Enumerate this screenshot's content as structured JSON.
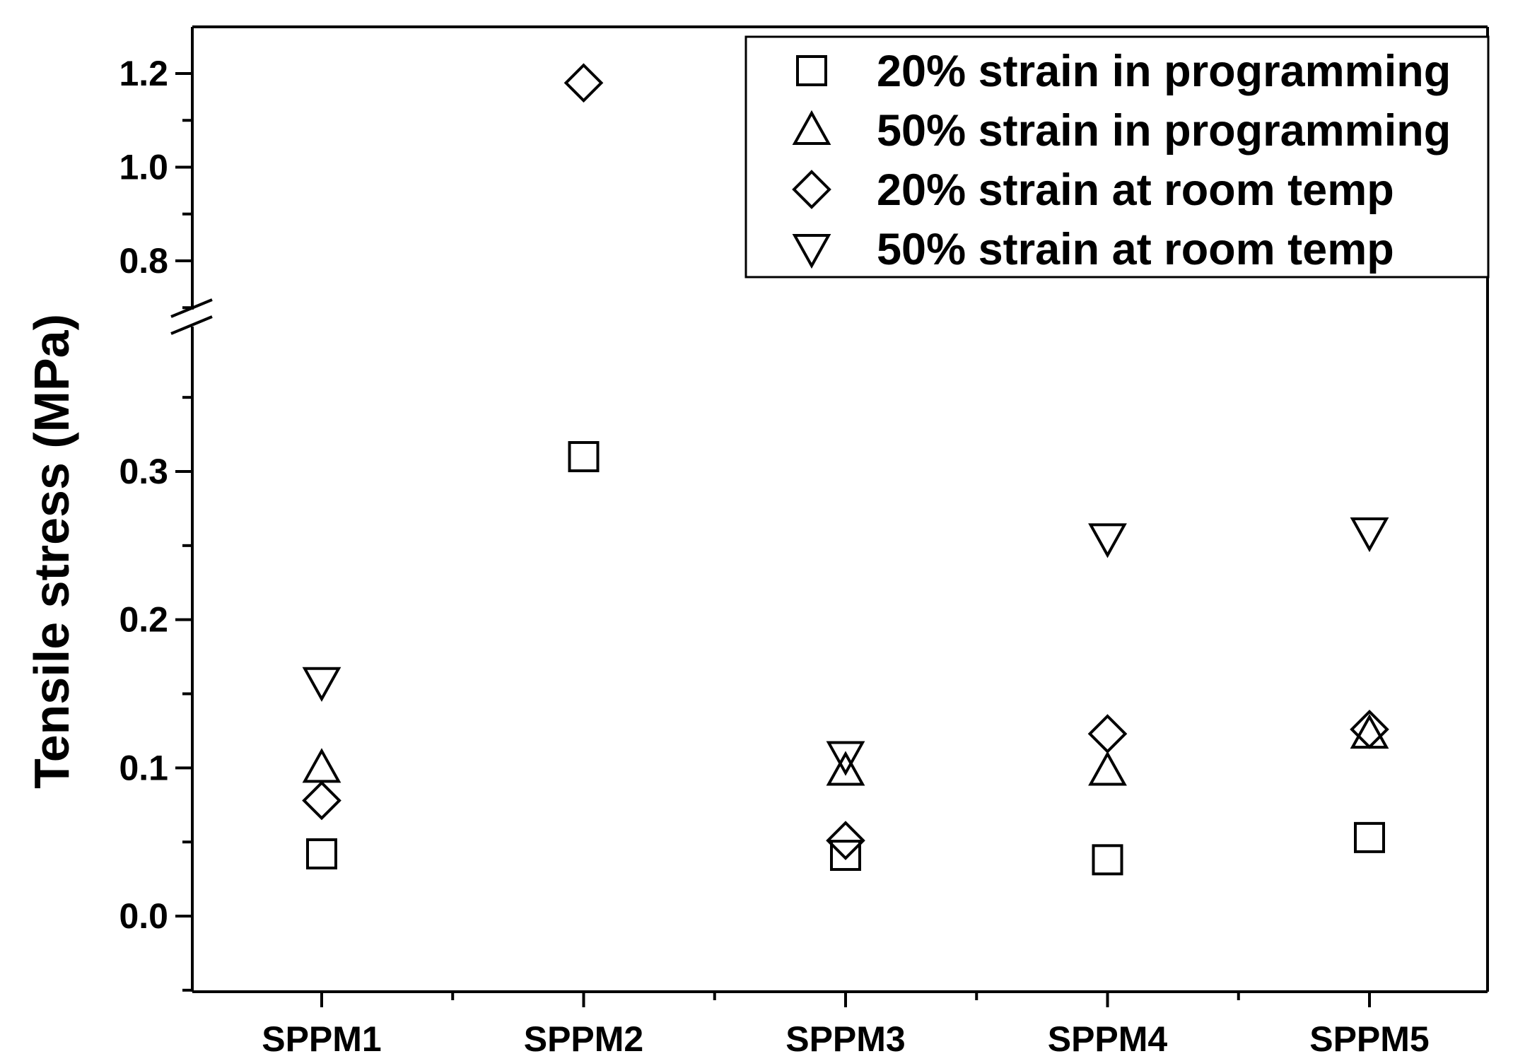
{
  "chart_data": {
    "type": "scatter",
    "ylabel": "Tensile stress (MPa)",
    "xlabel": "",
    "categories": [
      "SPPM1",
      "SPPM2",
      "SPPM3",
      "SPPM4",
      "SPPM5"
    ],
    "axis_break": {
      "lower_range": [
        -0.05,
        0.4
      ],
      "upper_range": [
        0.7,
        1.3
      ]
    },
    "yticks_lower": [
      "0.0",
      "0.1",
      "0.2",
      "0.3"
    ],
    "yticks_upper": [
      "0.8",
      "1.0",
      "1.2"
    ],
    "legend_position": "top-right",
    "series": [
      {
        "name": "20% strain in programming",
        "marker": "square",
        "values": [
          0.042,
          0.31,
          0.041,
          0.038,
          0.053
        ]
      },
      {
        "name": "50% strain in programming",
        "marker": "triangle-up",
        "values": [
          0.1,
          null,
          0.098,
          0.098,
          0.123
        ]
      },
      {
        "name": "20% strain at room temp",
        "marker": "diamond",
        "values": [
          0.078,
          1.18,
          0.051,
          0.123,
          0.126
        ]
      },
      {
        "name": "50% strain at room temp",
        "marker": "triangle-down",
        "values": [
          0.158,
          null,
          0.108,
          0.255,
          0.259
        ]
      }
    ]
  }
}
